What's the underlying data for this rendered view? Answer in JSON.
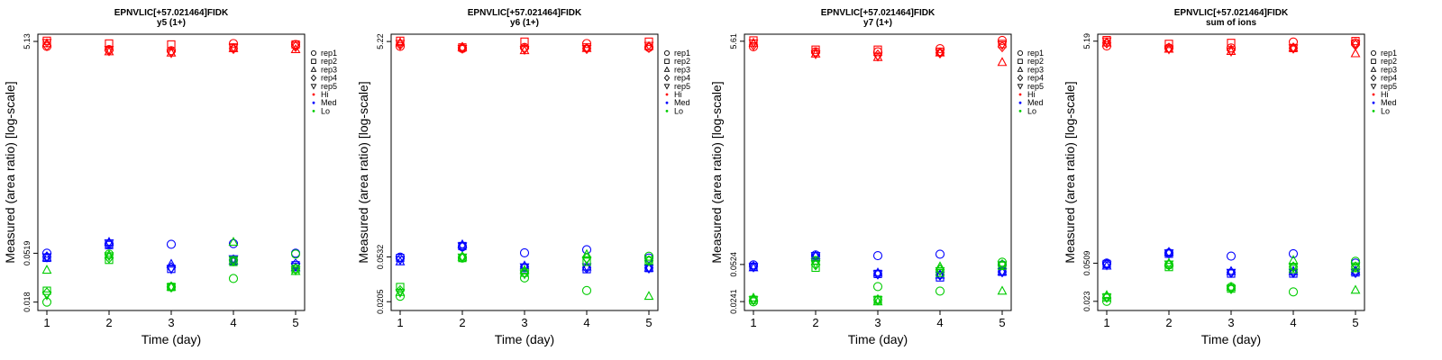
{
  "chart_data": [
    {
      "type": "scatter",
      "title": "EPNVLIC[+57.021464]FIDK",
      "subtitle": "y5 (1+)",
      "xlabel": "Time (day)",
      "ylabel": "Measured (area ratio) [log-scale]",
      "x_ticks": [
        "1",
        "2",
        "3",
        "4",
        "5"
      ],
      "y_ticks": [
        {
          "label": "0.018",
          "value": 0.018
        },
        {
          "label": "0.0519",
          "value": 0.0519
        },
        {
          "label": "5.13",
          "value": 5.13
        }
      ],
      "ylim": [
        0.015,
        6.0
      ],
      "ylog": true,
      "grid": false,
      "legend": {
        "placement": "right",
        "entries": [
          {
            "label": "rep1",
            "marker": "circle"
          },
          {
            "label": "rep2",
            "marker": "square"
          },
          {
            "label": "rep3",
            "marker": "triangle"
          },
          {
            "label": "rep4",
            "marker": "diamond"
          },
          {
            "label": "rep5",
            "marker": "triangle-down"
          },
          {
            "label": "Hi",
            "color": "#ff0000"
          },
          {
            "label": "Med",
            "color": "#0000ff"
          },
          {
            "label": "Lo",
            "color": "#00cc00"
          }
        ]
      },
      "series": [
        {
          "name": "Hi",
          "color": "#ff0000",
          "points": [
            {
              "rep": "rep1",
              "y": [
                4.6,
                4.3,
                4.2,
                4.9,
                4.8
              ]
            },
            {
              "rep": "rep2",
              "y": [
                5.2,
                4.9,
                4.8,
                4.5,
                4.8
              ]
            },
            {
              "rep": "rep3",
              "y": [
                4.9,
                4.1,
                4.0,
                4.4,
                4.3
              ]
            },
            {
              "rep": "rep4",
              "y": [
                4.7,
                4.2,
                4.1,
                4.4,
                4.6
              ]
            },
            {
              "rep": "rep5",
              "y": [
                5.0,
                4.3,
                4.0,
                4.5,
                4.7
              ]
            }
          ]
        },
        {
          "name": "Med",
          "color": "#0000ff",
          "points": [
            {
              "rep": "rep1",
              "y": [
                0.052,
                0.063,
                0.063,
                0.064,
                0.052
              ]
            },
            {
              "rep": "rep2",
              "y": [
                0.047,
                0.062,
                0.037,
                0.044,
                0.04
              ]
            },
            {
              "rep": "rep3",
              "y": [
                0.047,
                0.066,
                0.041,
                0.044,
                0.038
              ]
            },
            {
              "rep": "rep4",
              "y": [
                0.048,
                0.064,
                0.038,
                0.045,
                0.041
              ]
            },
            {
              "rep": "rep5",
              "y": [
                0.048,
                0.065,
                0.037,
                0.046,
                0.039
              ]
            }
          ]
        },
        {
          "name": "Lo",
          "color": "#00cc00",
          "points": [
            {
              "rep": "rep1",
              "y": [
                0.018,
                0.051,
                0.025,
                0.03,
                0.051
              ]
            },
            {
              "rep": "rep2",
              "y": [
                0.023,
                0.045,
                0.025,
                0.043,
                0.037
              ]
            },
            {
              "rep": "rep3",
              "y": [
                0.036,
                0.05,
                0.025,
                0.066,
                0.035
              ]
            },
            {
              "rep": "rep4",
              "y": [
                0.022,
                0.047,
                0.025,
                0.044,
                0.037
              ]
            },
            {
              "rep": "rep5",
              "y": [
                0.021,
                0.049,
                0.025,
                0.045,
                0.036
              ]
            }
          ]
        }
      ]
    },
    {
      "type": "scatter",
      "title": "EPNVLIC[+57.021464]FIDK",
      "subtitle": "y6 (1+)",
      "xlabel": "Time (day)",
      "ylabel": "Measured (area ratio) [log-scale]",
      "x_ticks": [
        "1",
        "2",
        "3",
        "4",
        "5"
      ],
      "y_ticks": [
        {
          "label": "0.0205",
          "value": 0.0205
        },
        {
          "label": "0.0532",
          "value": 0.0532
        },
        {
          "label": "5.22",
          "value": 5.22
        }
      ],
      "ylim": [
        0.017,
        6.1
      ],
      "ylog": true,
      "grid": false,
      "legend": {
        "placement": "right",
        "entries": [
          {
            "label": "rep1",
            "marker": "circle"
          },
          {
            "label": "rep2",
            "marker": "square"
          },
          {
            "label": "rep3",
            "marker": "triangle"
          },
          {
            "label": "rep4",
            "marker": "diamond"
          },
          {
            "label": "rep5",
            "marker": "triangle-down"
          },
          {
            "label": "Hi",
            "color": "#ff0000"
          },
          {
            "label": "Med",
            "color": "#0000ff"
          },
          {
            "label": "Lo",
            "color": "#00cc00"
          }
        ]
      },
      "series": [
        {
          "name": "Hi",
          "color": "#ff0000",
          "points": [
            {
              "rep": "rep1",
              "y": [
                4.7,
                4.5,
                4.6,
                5.0,
                4.6
              ]
            },
            {
              "rep": "rep2",
              "y": [
                5.3,
                4.6,
                5.2,
                4.6,
                5.2
              ]
            },
            {
              "rep": "rep3",
              "y": [
                5.1,
                4.6,
                4.3,
                4.5,
                4.7
              ]
            },
            {
              "rep": "rep4",
              "y": [
                4.9,
                4.6,
                4.5,
                4.5,
                4.6
              ]
            },
            {
              "rep": "rep5",
              "y": [
                5.0,
                4.5,
                4.4,
                4.5,
                4.8
              ]
            }
          ]
        },
        {
          "name": "Med",
          "color": "#0000ff",
          "points": [
            {
              "rep": "rep1",
              "y": [
                0.053,
                0.066,
                0.058,
                0.062,
                0.052
              ]
            },
            {
              "rep": "rep2",
              "y": [
                0.052,
                0.067,
                0.042,
                0.041,
                0.042
              ]
            },
            {
              "rep": "rep3",
              "y": [
                0.048,
                0.069,
                0.044,
                0.043,
                0.042
              ]
            },
            {
              "rep": "rep4",
              "y": [
                0.051,
                0.066,
                0.043,
                0.042,
                0.042
              ]
            },
            {
              "rep": "rep5",
              "y": [
                0.05,
                0.067,
                0.043,
                0.043,
                0.042
              ]
            }
          ]
        },
        {
          "name": "Lo",
          "color": "#00cc00",
          "points": [
            {
              "rep": "rep1",
              "y": [
                0.023,
                0.052,
                0.034,
                0.026,
                0.054
              ]
            },
            {
              "rep": "rep2",
              "y": [
                0.028,
                0.052,
                0.038,
                0.048,
                0.049
              ]
            },
            {
              "rep": "rep3",
              "y": [
                0.025,
                0.053,
                0.04,
                0.056,
                0.023
              ]
            },
            {
              "rep": "rep4",
              "y": [
                0.026,
                0.053,
                0.038,
                0.052,
                0.049
              ]
            },
            {
              "rep": "rep5",
              "y": [
                0.025,
                0.053,
                0.037,
                0.05,
                0.05
              ]
            }
          ]
        }
      ]
    },
    {
      "type": "scatter",
      "title": "EPNVLIC[+57.021464]FIDK",
      "subtitle": "y7 (1+)",
      "xlabel": "Time (day)",
      "ylabel": "Measured (area ratio) [log-scale]",
      "x_ticks": [
        "1",
        "2",
        "3",
        "4",
        "5"
      ],
      "y_ticks": [
        {
          "label": "0.0241",
          "value": 0.0241
        },
        {
          "label": "0.0524",
          "value": 0.0524
        },
        {
          "label": "5.61",
          "value": 5.61
        }
      ],
      "ylim": [
        0.02,
        6.5
      ],
      "ylog": true,
      "grid": false,
      "legend": {
        "placement": "right",
        "entries": [
          {
            "label": "rep1",
            "marker": "circle"
          },
          {
            "label": "rep2",
            "marker": "square"
          },
          {
            "label": "rep3",
            "marker": "triangle"
          },
          {
            "label": "rep4",
            "marker": "diamond"
          },
          {
            "label": "rep5",
            "marker": "triangle-down"
          },
          {
            "label": "Hi",
            "color": "#ff0000"
          },
          {
            "label": "Med",
            "color": "#0000ff"
          },
          {
            "label": "Lo",
            "color": "#00cc00"
          }
        ]
      },
      "series": [
        {
          "name": "Hi",
          "color": "#ff0000",
          "points": [
            {
              "rep": "rep1",
              "y": [
                5.0,
                4.5,
                4.5,
                4.8,
                5.7
              ]
            },
            {
              "rep": "rep2",
              "y": [
                5.7,
                4.7,
                4.7,
                4.5,
                5.3
              ]
            },
            {
              "rep": "rep3",
              "y": [
                5.4,
                4.3,
                4.0,
                4.4,
                3.6
              ]
            },
            {
              "rep": "rep4",
              "y": [
                5.2,
                4.4,
                4.2,
                4.4,
                5.0
              ]
            },
            {
              "rep": "rep5",
              "y": [
                5.4,
                4.3,
                4.1,
                4.4,
                5.2
              ]
            }
          ]
        },
        {
          "name": "Med",
          "color": "#0000ff",
          "points": [
            {
              "rep": "rep1",
              "y": [
                0.052,
                0.064,
                0.063,
                0.065,
                0.052
              ]
            },
            {
              "rep": "rep2",
              "y": [
                0.05,
                0.062,
                0.043,
                0.04,
                0.045
              ]
            },
            {
              "rep": "rep3",
              "y": [
                0.049,
                0.063,
                0.044,
                0.042,
                0.045
              ]
            },
            {
              "rep": "rep4",
              "y": [
                0.05,
                0.062,
                0.043,
                0.042,
                0.045
              ]
            },
            {
              "rep": "rep5",
              "y": [
                0.05,
                0.063,
                0.043,
                0.042,
                0.045
              ]
            }
          ]
        },
        {
          "name": "Lo",
          "color": "#00cc00",
          "points": [
            {
              "rep": "rep1",
              "y": [
                0.024,
                0.057,
                0.033,
                0.03,
                0.055
              ]
            },
            {
              "rep": "rep2",
              "y": [
                0.025,
                0.049,
                0.025,
                0.044,
                0.051
              ]
            },
            {
              "rep": "rep3",
              "y": [
                0.026,
                0.056,
                0.024,
                0.05,
                0.03
              ]
            },
            {
              "rep": "rep4",
              "y": [
                0.025,
                0.052,
                0.025,
                0.047,
                0.052
              ]
            },
            {
              "rep": "rep5",
              "y": [
                0.025,
                0.053,
                0.025,
                0.046,
                0.052
              ]
            }
          ]
        }
      ]
    },
    {
      "type": "scatter",
      "title": "EPNVLIC[+57.021464]FIDK",
      "subtitle": "sum of ions",
      "xlabel": "Time (day)",
      "ylabel": "Measured (area ratio) [log-scale]",
      "x_ticks": [
        "1",
        "2",
        "3",
        "4",
        "5"
      ],
      "y_ticks": [
        {
          "label": "0.023",
          "value": 0.023
        },
        {
          "label": "0.0509",
          "value": 0.0509
        },
        {
          "label": "5.19",
          "value": 5.19
        }
      ],
      "ylim": [
        0.019,
        6.0
      ],
      "ylog": true,
      "grid": false,
      "legend": {
        "placement": "right",
        "entries": [
          {
            "label": "rep1",
            "marker": "circle"
          },
          {
            "label": "rep2",
            "marker": "square"
          },
          {
            "label": "rep3",
            "marker": "triangle"
          },
          {
            "label": "rep4",
            "marker": "diamond"
          },
          {
            "label": "rep5",
            "marker": "triangle-down"
          },
          {
            "label": "Hi",
            "color": "#ff0000"
          },
          {
            "label": "Med",
            "color": "#0000ff"
          },
          {
            "label": "Lo",
            "color": "#00cc00"
          }
        ]
      },
      "series": [
        {
          "name": "Hi",
          "color": "#ff0000",
          "points": [
            {
              "rep": "rep1",
              "y": [
                4.7,
                4.5,
                4.5,
                5.1,
                5.0
              ]
            },
            {
              "rep": "rep2",
              "y": [
                5.3,
                4.9,
                5.0,
                4.5,
                5.2
              ]
            },
            {
              "rep": "rep3",
              "y": [
                5.0,
                4.4,
                4.2,
                4.5,
                4.0
              ]
            },
            {
              "rep": "rep4",
              "y": [
                5.0,
                4.5,
                4.3,
                4.5,
                4.8
              ]
            },
            {
              "rep": "rep5",
              "y": [
                5.2,
                4.4,
                4.2,
                4.5,
                4.9
              ]
            }
          ]
        },
        {
          "name": "Med",
          "color": "#0000ff",
          "points": [
            {
              "rep": "rep1",
              "y": [
                0.051,
                0.063,
                0.059,
                0.062,
                0.051
              ]
            },
            {
              "rep": "rep2",
              "y": [
                0.05,
                0.062,
                0.041,
                0.041,
                0.042
              ]
            },
            {
              "rep": "rep3",
              "y": [
                0.048,
                0.064,
                0.043,
                0.043,
                0.043
              ]
            },
            {
              "rep": "rep4",
              "y": [
                0.05,
                0.063,
                0.042,
                0.042,
                0.042
              ]
            },
            {
              "rep": "rep5",
              "y": [
                0.049,
                0.063,
                0.042,
                0.042,
                0.042
              ]
            }
          ]
        },
        {
          "name": "Lo",
          "color": "#00cc00",
          "points": [
            {
              "rep": "rep1",
              "y": [
                0.023,
                0.049,
                0.031,
                0.028,
                0.053
              ]
            },
            {
              "rep": "rep2",
              "y": [
                0.025,
                0.047,
                0.03,
                0.045,
                0.046
              ]
            },
            {
              "rep": "rep3",
              "y": [
                0.026,
                0.051,
                0.031,
                0.054,
                0.029
              ]
            },
            {
              "rep": "rep4",
              "y": [
                0.025,
                0.049,
                0.03,
                0.047,
                0.047
              ]
            },
            {
              "rep": "rep5",
              "y": [
                0.025,
                0.05,
                0.03,
                0.047,
                0.048
              ]
            }
          ]
        }
      ]
    }
  ]
}
